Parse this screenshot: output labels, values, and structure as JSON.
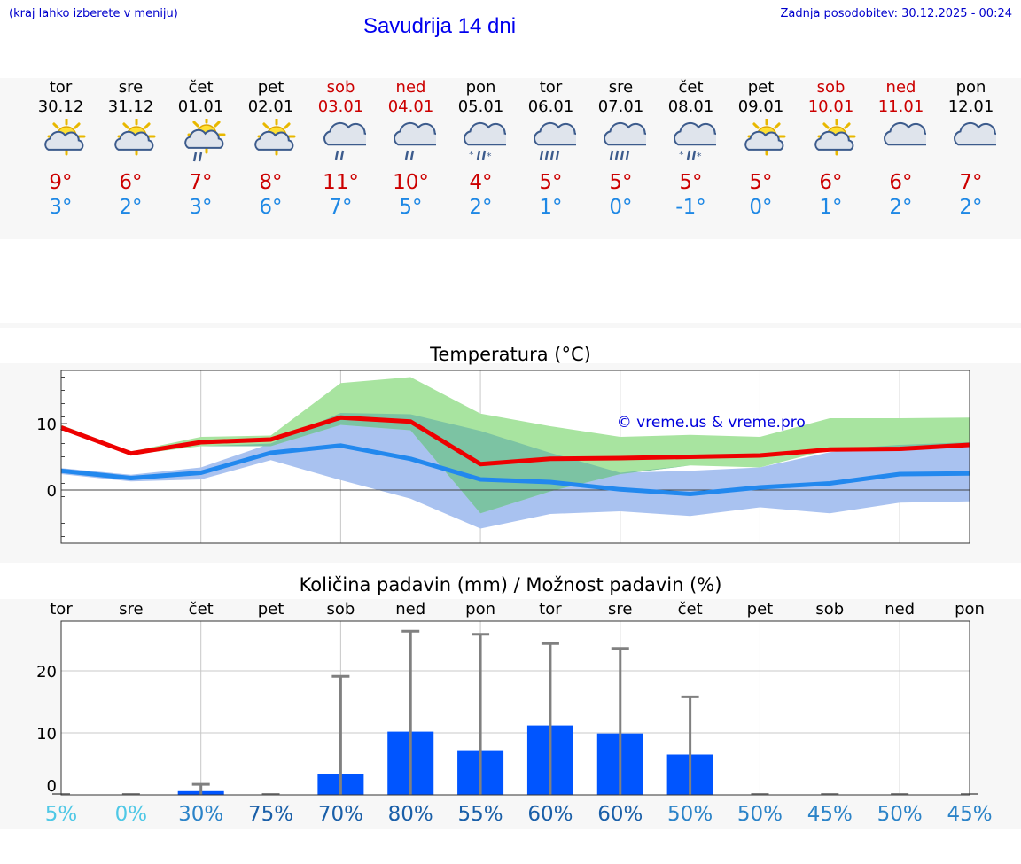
{
  "header": {
    "hint": "(kraj lahko izberete v meniju)",
    "title": "Savudrija 14 dni",
    "updated": "Zadnja posodobitev: 30.12.2025 - 00:24"
  },
  "days": [
    {
      "name": "tor",
      "date": "30.12",
      "weekend": false,
      "icon": "sun-cloud-icon",
      "tmax": "9°",
      "tmin": "3°"
    },
    {
      "name": "sre",
      "date": "31.12",
      "weekend": false,
      "icon": "sun-cloud-icon",
      "tmax": "6°",
      "tmin": "2°"
    },
    {
      "name": "čet",
      "date": "01.01",
      "weekend": false,
      "icon": "sun-cloud-rain-icon",
      "tmax": "7°",
      "tmin": "3°"
    },
    {
      "name": "pet",
      "date": "02.01",
      "weekend": false,
      "icon": "sun-cloud-icon",
      "tmax": "8°",
      "tmin": "6°"
    },
    {
      "name": "sob",
      "date": "03.01",
      "weekend": true,
      "icon": "cloud-rain-icon",
      "tmax": "11°",
      "tmin": "7°"
    },
    {
      "name": "ned",
      "date": "04.01",
      "weekend": true,
      "icon": "cloud-rain-icon",
      "tmax": "10°",
      "tmin": "5°"
    },
    {
      "name": "pon",
      "date": "05.01",
      "weekend": false,
      "icon": "cloud-sleet-icon",
      "tmax": "4°",
      "tmin": "2°"
    },
    {
      "name": "tor",
      "date": "06.01",
      "weekend": false,
      "icon": "cloud-heavy-rain-icon",
      "tmax": "5°",
      "tmin": "1°"
    },
    {
      "name": "sre",
      "date": "07.01",
      "weekend": false,
      "icon": "cloud-heavy-rain-icon",
      "tmax": "5°",
      "tmin": "0°"
    },
    {
      "name": "čet",
      "date": "08.01",
      "weekend": false,
      "icon": "cloud-sleet-icon",
      "tmax": "5°",
      "tmin": "-1°"
    },
    {
      "name": "pet",
      "date": "09.01",
      "weekend": false,
      "icon": "sun-cloud-icon",
      "tmax": "5°",
      "tmin": "0°"
    },
    {
      "name": "sob",
      "date": "10.01",
      "weekend": true,
      "icon": "sun-cloud-icon",
      "tmax": "6°",
      "tmin": "1°"
    },
    {
      "name": "ned",
      "date": "11.01",
      "weekend": true,
      "icon": "cloud-icon",
      "tmax": "6°",
      "tmin": "2°"
    },
    {
      "name": "pon",
      "date": "12.01",
      "weekend": false,
      "icon": "cloud-icon",
      "tmax": "7°",
      "tmin": "2°"
    }
  ],
  "colors": {
    "max_line": "#ee0000",
    "min_line": "#2288ee",
    "max_band": "#a8e4a0",
    "min_band": "#a9c2f0",
    "overlap_band": "#7cc3a3",
    "bar": "#0055ff",
    "whisker": "#808080"
  },
  "chart_data": [
    {
      "type": "line",
      "title": "Temperatura (°C)",
      "watermark": "© vreme.us & vreme.pro",
      "x": [
        1,
        2,
        3,
        4,
        5,
        6,
        7,
        8,
        9,
        10,
        11,
        12,
        13,
        14
      ],
      "ylim": [
        -8,
        18
      ],
      "yticks": [
        0,
        10
      ],
      "series": [
        {
          "name": "max",
          "values": [
            9.4,
            5.5,
            7.2,
            7.6,
            10.9,
            10.3,
            3.9,
            4.7,
            4.8,
            5.0,
            5.2,
            6.1,
            6.2,
            6.8
          ]
        },
        {
          "name": "min",
          "values": [
            2.9,
            1.8,
            2.6,
            5.6,
            6.7,
            4.7,
            1.6,
            1.2,
            0.1,
            -0.6,
            0.4,
            1.0,
            2.4,
            2.5
          ]
        }
      ],
      "max_range": {
        "low": [
          9.2,
          5.3,
          6.6,
          6.6,
          9.8,
          9.0,
          -3.5,
          -0.2,
          2.4,
          3.7,
          3.4,
          6.1,
          6.1,
          6.7
        ],
        "high": [
          9.8,
          5.8,
          8.0,
          8.2,
          16.1,
          17.0,
          11.5,
          9.6,
          8.0,
          8.3,
          8.0,
          10.8,
          10.8,
          10.9
        ]
      },
      "min_range": {
        "low": [
          2.4,
          1.3,
          1.6,
          4.5,
          1.5,
          -1.3,
          -5.8,
          -3.6,
          -3.2,
          -3.9,
          -2.6,
          -3.5,
          -1.9,
          -1.7
        ],
        "high": [
          3.3,
          2.3,
          3.4,
          7.0,
          11.6,
          11.4,
          8.9,
          5.6,
          2.6,
          2.9,
          3.4,
          5.7,
          6.8,
          7.2
        ]
      }
    },
    {
      "type": "bar",
      "title": "Količina padavin (mm) / Možnost padavin (%)",
      "categories": [
        "tor",
        "sre",
        "čet",
        "pet",
        "sob",
        "ned",
        "pon",
        "tor",
        "sre",
        "čet",
        "pet",
        "sob",
        "ned",
        "pon"
      ],
      "values": [
        0,
        0,
        0.6,
        0,
        3.4,
        10.2,
        7.2,
        11.2,
        9.9,
        6.5,
        0,
        0,
        0,
        0
      ],
      "error_max": [
        0,
        0,
        1.7,
        0,
        19.1,
        26.4,
        25.9,
        24.4,
        23.6,
        15.8,
        0,
        0,
        0,
        0
      ],
      "ylim": [
        0,
        28
      ],
      "yticks": [
        0,
        10,
        20
      ],
      "probabilities": [
        "5%",
        "0%",
        "30%",
        "75%",
        "70%",
        "80%",
        "55%",
        "60%",
        "60%",
        "50%",
        "50%",
        "45%",
        "50%",
        "45%"
      ]
    }
  ]
}
